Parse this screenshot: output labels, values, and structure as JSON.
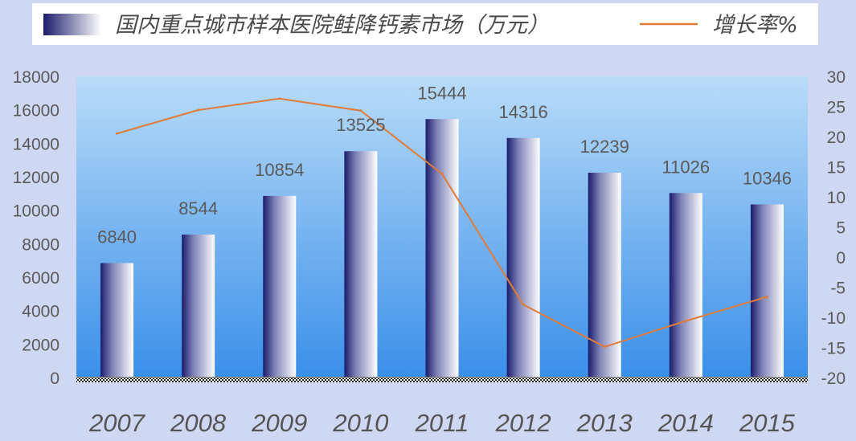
{
  "chart_data": {
    "type": "bar",
    "categories": [
      "2007",
      "2008",
      "2009",
      "2010",
      "2011",
      "2012",
      "2013",
      "2014",
      "2015"
    ],
    "series": [
      {
        "name": "国内重点城市样本医院鲑降钙素市场（万元）",
        "type": "bar",
        "axis": "left",
        "values": [
          6840,
          8544,
          10854,
          13525,
          15444,
          14316,
          12239,
          11026,
          10346
        ],
        "labels": [
          "6840",
          "8544",
          "10854",
          "13525",
          "15444",
          "14316",
          "12239",
          "11026",
          "10346"
        ]
      },
      {
        "name": "增长率%",
        "type": "line",
        "axis": "right",
        "values": [
          20.5,
          24.4,
          26.3,
          24.3,
          13.8,
          -7.9,
          -14.9,
          -10.6,
          -6.6
        ]
      }
    ],
    "y_left": {
      "min": 0,
      "max": 18000,
      "ticks": [
        "0",
        "2000",
        "4000",
        "6000",
        "8000",
        "10000",
        "12000",
        "14000",
        "16000",
        "18000"
      ]
    },
    "y_right": {
      "min": -20,
      "max": 30,
      "ticks": [
        "-20",
        "-15",
        "-10",
        "-5",
        "0",
        "5",
        "10",
        "15",
        "20",
        "25",
        "30"
      ]
    },
    "legend_position": "top",
    "grid": false,
    "colors": {
      "bar_dark": "#1a1c6b",
      "bar_light": "#ffffff",
      "line": "#e07b39",
      "plot_top": "#b9dcf8",
      "plot_bottom": "#3a8fe9",
      "background": "#cfd8f2",
      "legend_background": "#ffffff"
    }
  }
}
